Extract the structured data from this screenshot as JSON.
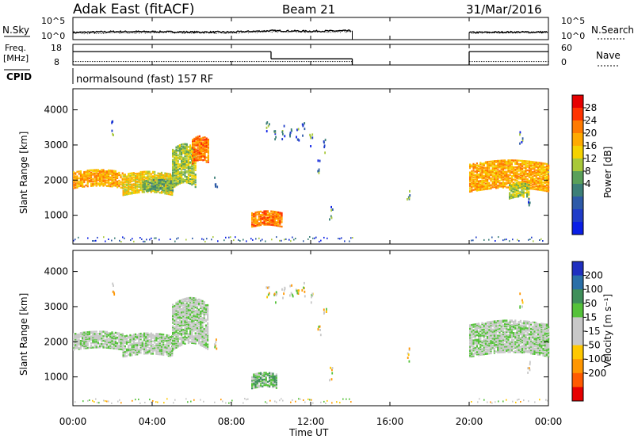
{
  "header": {
    "title": "Adak East (fitACF)",
    "beam": "Beam 21",
    "date": "31/Mar/2016"
  },
  "panels": {
    "nsky": {
      "label": "N.Sky",
      "tick_top": "10^5",
      "tick_bottom": "10^0"
    },
    "nsearch": {
      "label": "N.Search",
      "tick_top": "10^5",
      "tick_bottom": "10^0"
    },
    "freq": {
      "label_line1": "Freq.",
      "label_line2": "[MHz]",
      "tick_top": "18",
      "tick_bottom": "8"
    },
    "nave": {
      "label": "Nave",
      "tick_top": "60",
      "tick_bottom": "0"
    },
    "cpid": {
      "label": "CPID",
      "program": "normalsound (fast) 157 RF"
    }
  },
  "colorbars": {
    "power": {
      "title": "Power [dB]",
      "ticks": [
        "28",
        "24",
        "20",
        "16",
        "12",
        "8",
        "4"
      ],
      "colors": [
        "#e60000",
        "#ff3300",
        "#ff7a00",
        "#ffaa00",
        "#f5d200",
        "#a8c83a",
        "#5aa05a",
        "#3c7f78",
        "#2d5aa8",
        "#1f3cc8",
        "#0a1ee6"
      ]
    },
    "velocity": {
      "title": "Velocity [m s⁻¹]",
      "ticks": [
        "200",
        "100",
        "50",
        "15",
        "-15",
        "-50",
        "-100",
        "-200"
      ],
      "colors": [
        "#1f2fc0",
        "#2a6fa8",
        "#3f8f5a",
        "#55c23a",
        "#c8c8c8",
        "#c8c8c8",
        "#ffc800",
        "#ff9600",
        "#ff5a00",
        "#e60000"
      ]
    }
  },
  "axes": {
    "ylabel": "Slant Range [km]",
    "xlabel": "Time UT",
    "yticks": [
      "4000",
      "3000",
      "2000",
      "1000"
    ],
    "xticks": [
      "00:00",
      "04:00",
      "08:00",
      "12:00",
      "16:00",
      "20:00",
      "00:00"
    ]
  },
  "chart_data": [
    {
      "type": "line",
      "name": "nsky_nsearch",
      "x_hours": [
        0,
        2,
        4,
        6,
        8,
        10,
        12,
        14,
        20,
        22,
        24
      ],
      "series": [
        {
          "name": "N.Sky",
          "values": [
            1.6,
            1.8,
            1.8,
            1.7,
            1.7,
            2.0,
            1.9,
            2.0,
            1.6,
            1.7,
            1.7
          ]
        },
        {
          "name": "N.Search",
          "values": [
            1.4,
            1.5,
            1.6,
            1.5,
            1.5,
            1.8,
            1.7,
            1.8,
            1.5,
            1.6,
            1.6
          ]
        }
      ],
      "gaps_hours": [
        [
          14.1,
          20.0
        ]
      ],
      "ylim_log10": [
        0,
        5
      ]
    },
    {
      "type": "line",
      "name": "freq_nave",
      "series": [
        {
          "name": "Freq. [MHz]",
          "segments": [
            {
              "x": [
                0,
                10
              ],
              "value": 14.5
            },
            {
              "x": [
                10,
                14.1
              ],
              "value": 11.0
            },
            {
              "x": [
                20,
                24
              ],
              "value": 14.5
            }
          ]
        },
        {
          "name": "Nave",
          "segments": [
            {
              "x": [
                0,
                14.1
              ],
              "value": 10
            },
            {
              "x": [
                20,
                24
              ],
              "value": 10
            }
          ]
        }
      ],
      "ylim_freq": [
        8,
        18
      ],
      "ylim_nave": [
        0,
        60
      ]
    },
    {
      "type": "heatmap",
      "name": "power",
      "xlim_hours": [
        0,
        24
      ],
      "ylim_km": [
        180,
        4600
      ],
      "regions": [
        {
          "t0": 0.0,
          "t1": 2.5,
          "r0": 1800,
          "r1": 2250,
          "level": 7
        },
        {
          "t0": 2.5,
          "t1": 5.0,
          "r0": 1600,
          "r1": 2200,
          "level": 6
        },
        {
          "t0": 5.0,
          "t1": 6.2,
          "r0": 1800,
          "r1": 2900,
          "level": 5
        },
        {
          "t0": 6.0,
          "t1": 6.8,
          "r0": 2500,
          "r1": 3200,
          "level": 8
        },
        {
          "t0": 3.5,
          "t1": 5.0,
          "r0": 1700,
          "r1": 2000,
          "level": 4
        },
        {
          "t0": 9.0,
          "t1": 10.5,
          "r0": 700,
          "r1": 1100,
          "level": 8
        },
        {
          "t0": 20.0,
          "t1": 24.0,
          "r0": 1700,
          "r1": 2500,
          "level": 7
        },
        {
          "t0": 22.0,
          "t1": 23.0,
          "r0": 1500,
          "r1": 1900,
          "level": 5
        }
      ]
    },
    {
      "type": "heatmap",
      "name": "velocity",
      "xlim_hours": [
        0,
        24
      ],
      "ylim_km": [
        180,
        4600
      ],
      "regions": [
        {
          "t0": 0.0,
          "t1": 2.5,
          "r0": 1800,
          "r1": 2250,
          "level": 4
        },
        {
          "t0": 2.5,
          "t1": 5.0,
          "r0": 1600,
          "r1": 2200,
          "level": 4
        },
        {
          "t0": 5.0,
          "t1": 6.8,
          "r0": 1800,
          "r1": 3100,
          "level": 4
        },
        {
          "t0": 9.0,
          "t1": 10.3,
          "r0": 700,
          "r1": 1100,
          "level": 3
        },
        {
          "t0": 20.0,
          "t1": 24.0,
          "r0": 1600,
          "r1": 2500,
          "level": 4
        }
      ]
    }
  ]
}
